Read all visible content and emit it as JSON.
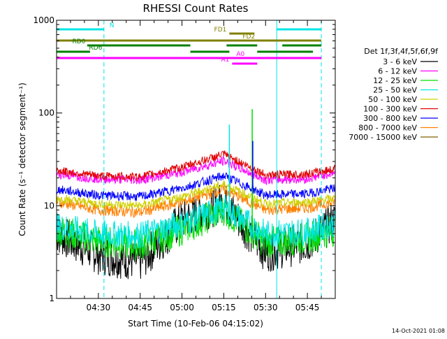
{
  "chart_data": {
    "type": "line",
    "title": "RHESSI Count Rates",
    "xlabel": "Start Time (10-Feb-06 04:15:02)",
    "ylabel": "Count Rate (s⁻¹ detector segment⁻¹)",
    "y_scale": "log",
    "ylim": [
      1,
      1000
    ],
    "xlim_minutes": [
      0,
      100
    ],
    "x_tick_labels": [
      "04:30",
      "04:45",
      "05:00",
      "05:15",
      "05:30",
      "05:45"
    ],
    "y_tick_labels": [
      "1",
      "10",
      "100",
      "1000"
    ],
    "legend": {
      "title": "Det 1f,3f,4f,5f,6f,9f",
      "placement": "right"
    },
    "series": [
      {
        "name": "3 - 6 keV",
        "color": "#000000",
        "values_at_ticks": [
          5.0,
          3.0,
          2.5,
          7.0,
          11.0,
          3.2,
          4.0,
          7.0
        ]
      },
      {
        "name": "6 - 12 keV",
        "color": "#ff00ff",
        "values_at_ticks": [
          22.0,
          19.5,
          19.0,
          23.0,
          30.5,
          19.0,
          19.5,
          23.0
        ]
      },
      {
        "name": "12 - 25 keV",
        "color": "#00e000",
        "values_at_ticks": [
          5.5,
          4.2,
          3.8,
          5.5,
          9.0,
          4.0,
          4.5,
          5.5
        ]
      },
      {
        "name": "25 - 50 keV",
        "color": "#00e5e5",
        "values_at_ticks": [
          6.0,
          5.0,
          4.8,
          6.5,
          9.5,
          5.0,
          5.3,
          6.5
        ]
      },
      {
        "name": "50 - 100 keV",
        "color": "#d0d000",
        "values_at_ticks": [
          12.0,
          10.5,
          10.0,
          12.5,
          17.0,
          10.5,
          11.0,
          12.0
        ]
      },
      {
        "name": "100 - 300 keV",
        "color": "#e00000",
        "values_at_ticks": [
          24.0,
          21.0,
          20.5,
          26.0,
          36.0,
          21.5,
          22.0,
          25.0
        ]
      },
      {
        "name": "300 - 800 keV",
        "color": "#0000ff",
        "values_at_ticks": [
          15.0,
          13.0,
          12.5,
          15.5,
          21.0,
          13.0,
          13.5,
          15.5
        ]
      },
      {
        "name": "800 - 7000 keV",
        "color": "#ff8000",
        "values_at_ticks": [
          11.0,
          9.0,
          8.5,
          11.0,
          15.0,
          9.0,
          9.5,
          11.0
        ]
      },
      {
        "name": "7000 - 15000 keV",
        "color": "#806000",
        "values_at_ticks": []
      }
    ],
    "spikes": [
      {
        "series": "25 - 50 keV",
        "time": "05:17",
        "peak": 75
      },
      {
        "series": "12 - 25 keV",
        "time": "05:25",
        "peak": 110
      },
      {
        "series": "300 - 800 keV",
        "time": "05:25",
        "peak": 50
      }
    ],
    "flag_bars": [
      {
        "label": "N",
        "color": "#00e5e5",
        "segments": [
          [
            "04:15",
            "04:32"
          ],
          [
            "05:34",
            "05:50"
          ]
        ]
      },
      {
        "label": "FD1",
        "color": "#808000",
        "segments": [
          [
            "05:17",
            "05:26"
          ]
        ]
      },
      {
        "label": "FD2",
        "color": "#808000",
        "segments": [
          [
            "04:15",
            "05:50"
          ]
        ]
      },
      {
        "label": "RD0",
        "color": "#008000",
        "segments": [
          [
            "04:26",
            "05:03"
          ],
          [
            "05:16",
            "05:27"
          ],
          [
            "05:36",
            "05:50"
          ]
        ]
      },
      {
        "label": "RD6",
        "color": "#008000",
        "segments": [
          [
            "04:15",
            "04:27"
          ],
          [
            "05:03",
            "05:17"
          ],
          [
            "05:27",
            "05:47"
          ]
        ]
      },
      {
        "label": "A0",
        "color": "#ff00ff",
        "segments": [
          [
            "04:15",
            "05:50"
          ]
        ]
      },
      {
        "label": "A1",
        "color": "#ff00ff",
        "segments": [
          [
            "05:18",
            "05:27"
          ]
        ]
      }
    ],
    "markers": {
      "solid": [
        "04:15",
        "05:34"
      ],
      "dashed": [
        "04:32",
        "05:50"
      ]
    },
    "footer_date": "14-Oct-2021 01:08"
  }
}
